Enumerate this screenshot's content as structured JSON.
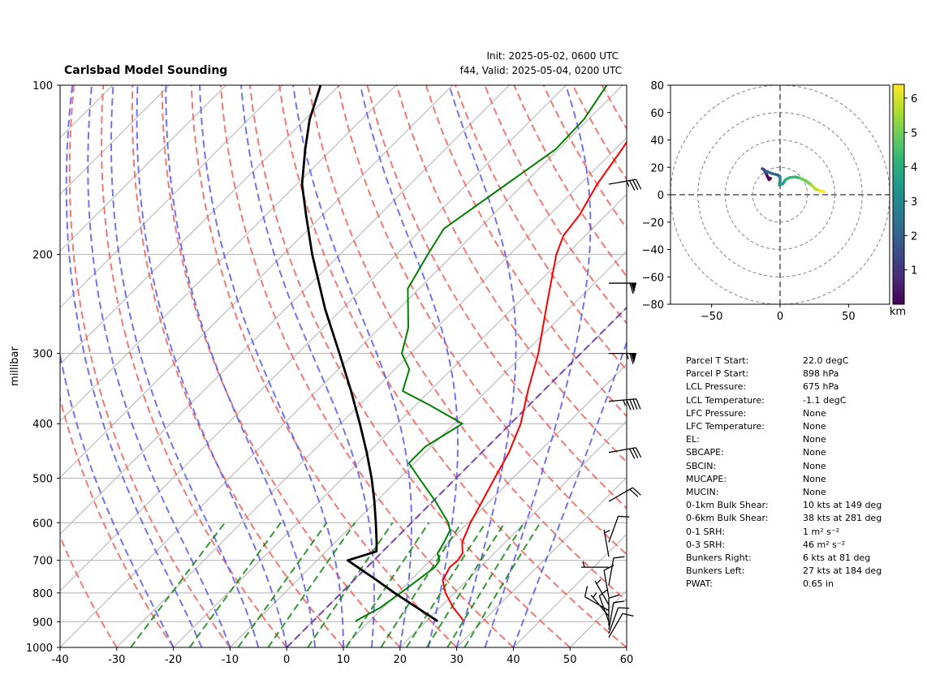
{
  "header": {
    "title": "Carlsbad Model Sounding",
    "init": "Init: 2025-05-02, 0600 UTC",
    "valid": "f44, Valid: 2025-05-04, 0200 UTC"
  },
  "colors": {
    "temperature": "#ff0000",
    "dewpoint": "#008000",
    "parcel": "#000000",
    "dry_adiabat": "#f0605c",
    "moist_adiabat": "#5a5af0",
    "mixing_ratio": "#008000",
    "zero_isotherm": "#7a3dbf",
    "grid": "#b0b0b0"
  },
  "chart_data": [
    {
      "type": "line",
      "subtype": "skew-t log-p",
      "title": "Carlsbad Model Sounding",
      "xlabel": "",
      "ylabel": "millibar",
      "xlim": [
        -40,
        60
      ],
      "ylim": [
        1000,
        100
      ],
      "y_scale": "log",
      "x_ticks": [
        -40,
        -30,
        -20,
        -10,
        0,
        10,
        20,
        30,
        40,
        50,
        60
      ],
      "y_ticks": [
        1000,
        900,
        800,
        700,
        600,
        500,
        400,
        300,
        200,
        100
      ],
      "grid": true,
      "series": [
        {
          "key": "temperature",
          "points": [
            [
              898,
              26.6
            ],
            [
              880,
              25.1
            ],
            [
              850,
              22.4
            ],
            [
              800,
              18.4
            ],
            [
              760,
              15.7
            ],
            [
              720,
              14.6
            ],
            [
              700,
              14.8
            ],
            [
              680,
              14.4
            ],
            [
              650,
              12.4
            ],
            [
              600,
              10.4
            ],
            [
              550,
              8.7
            ],
            [
              500,
              6.8
            ],
            [
              450,
              4.8
            ],
            [
              400,
              1.8
            ],
            [
              350,
              -2.7
            ],
            [
              300,
              -7.5
            ],
            [
              250,
              -14.0
            ],
            [
              225,
              -17.7
            ],
            [
              200,
              -21.8
            ],
            [
              185,
              -23.9
            ],
            [
              170,
              -24.7
            ],
            [
              150,
              -27.0
            ],
            [
              130,
              -28.8
            ],
            [
              115,
              -30.7
            ],
            [
              100,
              -32.9
            ]
          ]
        },
        {
          "key": "dewpoint",
          "points": [
            [
              898,
              7.5
            ],
            [
              880,
              8.2
            ],
            [
              850,
              9.5
            ],
            [
              800,
              10.5
            ],
            [
              760,
              11.2
            ],
            [
              720,
              12.0
            ],
            [
              700,
              11.6
            ],
            [
              680,
              10.0
            ],
            [
              650,
              9.2
            ],
            [
              620,
              8.2
            ],
            [
              600,
              6.5
            ],
            [
              550,
              0.5
            ],
            [
              500,
              -6.5
            ],
            [
              470,
              -11.0
            ],
            [
              440,
              -11.0
            ],
            [
              400,
              -8.5
            ],
            [
              370,
              -17.8
            ],
            [
              350,
              -24.8
            ],
            [
              320,
              -27.5
            ],
            [
              300,
              -31.6
            ],
            [
              270,
              -35.0
            ],
            [
              230,
              -42.0
            ],
            [
              200,
              -44.5
            ],
            [
              180,
              -46.2
            ],
            [
              150,
              -43.0
            ],
            [
              130,
              -40.5
            ],
            [
              115,
              -40.8
            ],
            [
              100,
              -42.8
            ]
          ]
        },
        {
          "key": "parcel",
          "points": [
            [
              898,
              22.0
            ],
            [
              800,
              9.4
            ],
            [
              760,
              4.1
            ],
            [
              700,
              -4.6
            ],
            [
              675,
              -1.1
            ],
            [
              650,
              -2.7
            ],
            [
              600,
              -6.3
            ],
            [
              550,
              -10.3
            ],
            [
              500,
              -14.9
            ],
            [
              450,
              -20.3
            ],
            [
              400,
              -26.6
            ],
            [
              350,
              -33.9
            ],
            [
              300,
              -42.6
            ],
            [
              250,
              -53.0
            ],
            [
              200,
              -64.9
            ],
            [
              170,
              -73.0
            ],
            [
              150,
              -79.1
            ],
            [
              130,
              -84.7
            ],
            [
              115,
              -89.2
            ],
            [
              100,
              -93.3
            ]
          ]
        }
      ],
      "wind_barbs": [
        {
          "p": 960,
          "speed": 10,
          "dir": 210
        },
        {
          "p": 945,
          "speed": 10,
          "dir": 200
        },
        {
          "p": 930,
          "speed": 10,
          "dir": 190
        },
        {
          "p": 915,
          "speed": 10,
          "dir": 180
        },
        {
          "p": 900,
          "speed": 10,
          "dir": 160
        },
        {
          "p": 880,
          "speed": 5,
          "dir": 140
        },
        {
          "p": 860,
          "speed": 10,
          "dir": 120
        },
        {
          "p": 840,
          "speed": 5,
          "dir": 150
        },
        {
          "p": 815,
          "speed": 10,
          "dir": 170
        },
        {
          "p": 775,
          "speed": 10,
          "dir": 190
        },
        {
          "p": 720,
          "speed": 5,
          "dir": 90
        },
        {
          "p": 690,
          "speed": 5,
          "dir": 170
        },
        {
          "p": 650,
          "speed": 10,
          "dir": 200
        },
        {
          "p": 550,
          "speed": 20,
          "dir": 240
        },
        {
          "p": 450,
          "speed": 30,
          "dir": 260
        },
        {
          "p": 365,
          "speed": 45,
          "dir": 265
        },
        {
          "p": 300,
          "speed": 65,
          "dir": 270
        },
        {
          "p": 225,
          "speed": 60,
          "dir": 270
        },
        {
          "p": 150,
          "speed": 35,
          "dir": 260
        }
      ]
    },
    {
      "type": "line",
      "subtype": "hodograph",
      "xlim": [
        -80,
        80
      ],
      "ylim": [
        -80,
        80
      ],
      "x_ticks": [
        -50,
        0,
        50
      ],
      "y_ticks": [
        -80,
        -60,
        -40,
        -20,
        0,
        20,
        40,
        60,
        80
      ],
      "colorbar": {
        "label": "km",
        "range": [
          0,
          6.4
        ],
        "ticks": [
          1,
          2,
          3,
          4,
          5,
          6
        ]
      },
      "points": [
        [
          -7,
          12
        ],
        [
          -8,
          11
        ],
        [
          -9,
          13
        ],
        [
          -10,
          15
        ],
        [
          -11,
          17
        ],
        [
          -12,
          18.5
        ],
        [
          -13,
          19
        ],
        [
          -10,
          17
        ],
        [
          -6,
          15.5
        ],
        [
          -2,
          14.5
        ],
        [
          0,
          13
        ],
        [
          0,
          10
        ],
        [
          -0.5,
          7
        ],
        [
          2,
          8
        ],
        [
          4,
          11
        ],
        [
          7,
          12.5
        ],
        [
          11,
          13
        ],
        [
          15,
          12
        ],
        [
          19,
          10
        ],
        [
          23,
          7
        ],
        [
          26,
          4
        ],
        [
          29,
          3
        ],
        [
          31,
          2.5
        ],
        [
          32,
          2
        ]
      ]
    }
  ],
  "parameters": [
    {
      "label": "Parcel T Start:",
      "value": "22.0 degC"
    },
    {
      "label": "Parcel P Start:",
      "value": "898 hPa"
    },
    {
      "label": "LCL Pressure:",
      "value": "675 hPa"
    },
    {
      "label": "LCL Temperature:",
      "value": "-1.1 degC"
    },
    {
      "label": "LFC Pressure:",
      "value": "None"
    },
    {
      "label": "LFC Temperature:",
      "value": "None"
    },
    {
      "label": "EL:",
      "value": "None"
    },
    {
      "label": "SBCAPE:",
      "value": "None"
    },
    {
      "label": "SBCIN:",
      "value": "None"
    },
    {
      "label": "MUCAPE:",
      "value": "None"
    },
    {
      "label": "MUCIN:",
      "value": "None"
    },
    {
      "label": "0-1km Bulk Shear:",
      "value": "10 kts at 149 deg"
    },
    {
      "label": "0-6km Bulk Shear:",
      "value": "38 kts at 281 deg"
    },
    {
      "label": "0-1 SRH:",
      "value": "1 m² s⁻²"
    },
    {
      "label": "0-3 SRH:",
      "value": "46 m² s⁻²"
    },
    {
      "label": "Bunkers Right:",
      "value": "6 kts at 81 deg"
    },
    {
      "label": "Bunkers Left:",
      "value": "27 kts at 184 deg"
    },
    {
      "label": "PWAT:",
      "value": "0.65 in"
    }
  ]
}
